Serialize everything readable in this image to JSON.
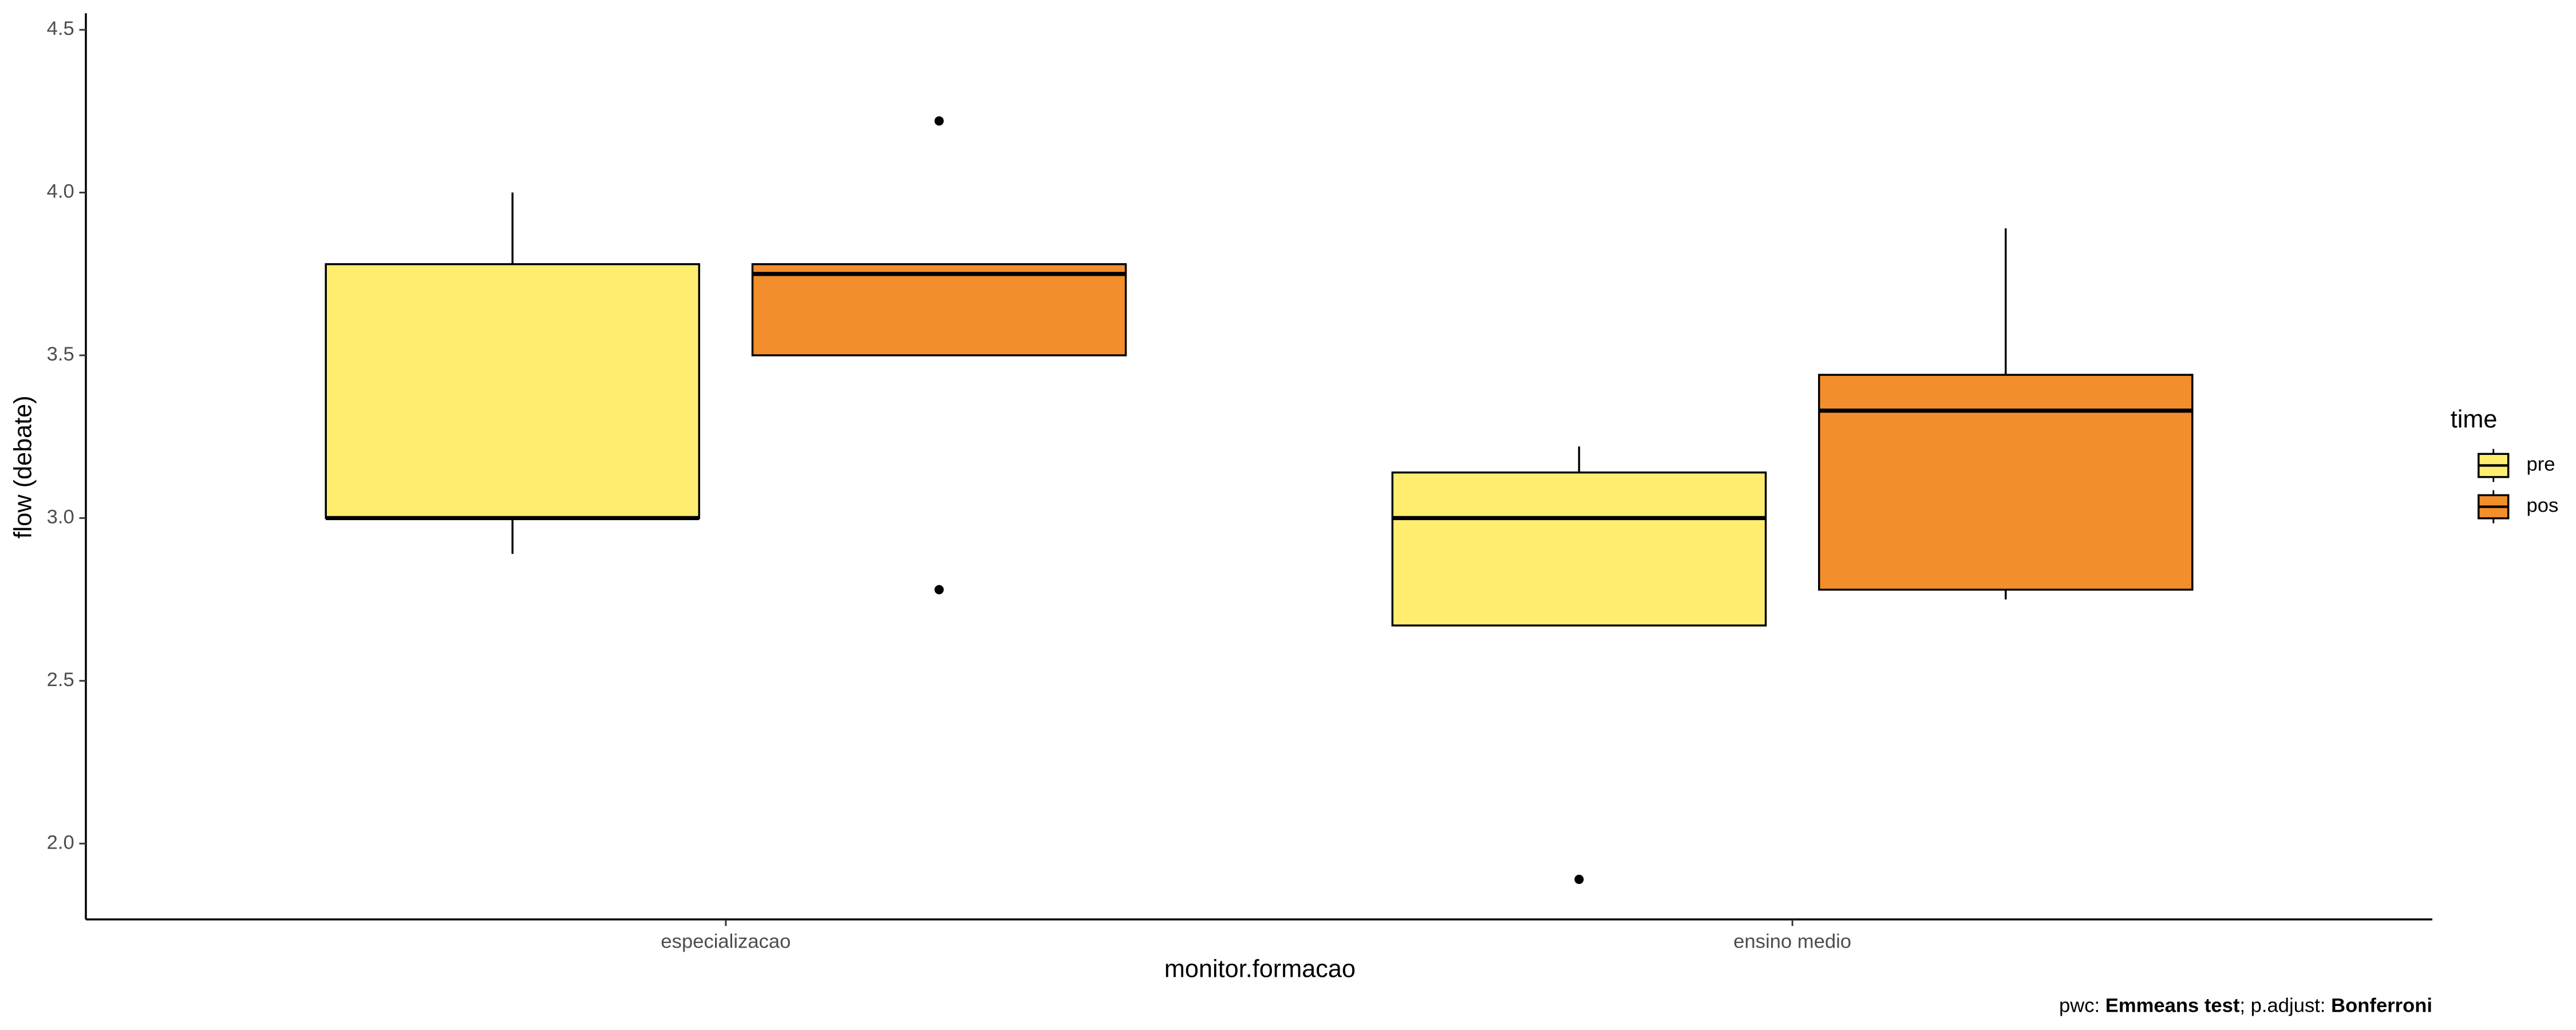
{
  "chart_data": {
    "type": "boxplot",
    "x_label": "monitor.formacao",
    "y_label": "flow (debate)",
    "categories": [
      "especializacao",
      "ensino medio"
    ],
    "ylim": [
      1.767,
      4.551
    ],
    "yticks": [
      {
        "value": 2,
        "label": "2.0"
      },
      2.5,
      {
        "value": 3,
        "label": "3.0"
      },
      3.5,
      {
        "value": 4,
        "label": "4.0"
      },
      4.5
    ],
    "legend_title": "time",
    "legend_position": "right",
    "series": [
      {
        "name": "pre",
        "color": "#ffed6f",
        "boxes": [
          {
            "whisker_low": 2.89,
            "q1": 3.0,
            "median": 3.0,
            "q3": 3.78,
            "whisker_high": 4.0,
            "outliers": []
          },
          {
            "whisker_low": 2.67,
            "q1": 2.67,
            "median": 3.0,
            "q3": 3.14,
            "whisker_high": 3.22,
            "outliers": [
              1.89
            ]
          }
        ]
      },
      {
        "name": "pos",
        "color": "#f28e2c",
        "boxes": [
          {
            "whisker_low": 3.5,
            "q1": 3.5,
            "median": 3.75,
            "q3": 3.78,
            "whisker_high": 3.78,
            "outliers": [
              4.22,
              2.78
            ]
          },
          {
            "whisker_low": 2.75,
            "q1": 2.78,
            "median": 3.33,
            "q3": 3.44,
            "whisker_high": 3.89,
            "outliers": []
          }
        ]
      }
    ],
    "caption": [
      "pwc: ",
      "Emmeans test",
      "; p.adjust: ",
      "Bonferroni"
    ]
  }
}
